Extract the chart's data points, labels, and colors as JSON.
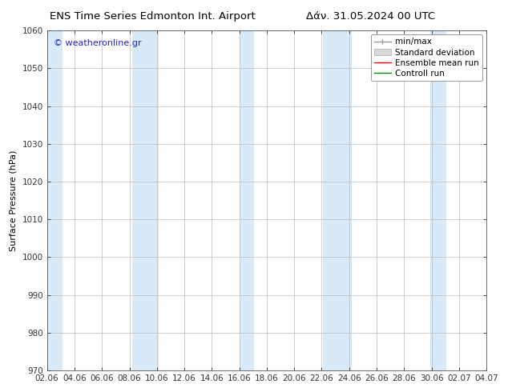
{
  "title_left": "ENS Time Series Edmonton Int. Airport",
  "title_right": "Δάν. 31.05.2024 00 UTC",
  "ylabel": "Surface Pressure (hPa)",
  "watermark": "© weatheronline.gr",
  "ylim": [
    970,
    1060
  ],
  "yticks": [
    970,
    980,
    990,
    1000,
    1010,
    1020,
    1030,
    1040,
    1050,
    1060
  ],
  "xtick_labels": [
    "02.06",
    "04.06",
    "06.06",
    "08.06",
    "10.06",
    "12.06",
    "14.06",
    "16.06",
    "18.06",
    "20.06",
    "22.06",
    "24.06",
    "26.06",
    "28.06",
    "30.06",
    "02.07",
    "04.07"
  ],
  "bg_color": "#ffffff",
  "plot_bg_color": "#ffffff",
  "shaded_band_color": "#d8eaf8",
  "legend_labels": [
    "min/max",
    "Standard deviation",
    "Ensemble mean run",
    "Controll run"
  ],
  "legend_colors": [
    "#999999",
    "#c8c8c8",
    "#ff0000",
    "#008800"
  ],
  "font_size_title": 9.5,
  "font_size_axis": 8,
  "font_size_ticks": 7.5,
  "font_size_legend": 7.5,
  "font_size_watermark": 8
}
